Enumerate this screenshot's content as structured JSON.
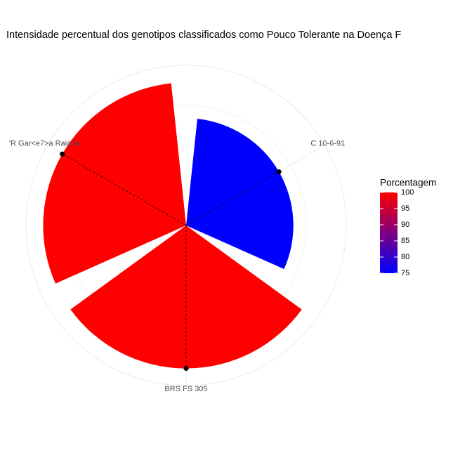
{
  "chart_data": {
    "type": "polar-bar",
    "title": "Intensidade percentual dos genotipos classificados como Pouco Tolerante na Doença F",
    "categories": [
      "C 10-6-91",
      "BRS FS 305",
      "'R Gar<e7>a Raiada"
    ],
    "values": [
      75,
      100,
      100
    ],
    "ylim": [
      0,
      112
    ],
    "legend": {
      "title": "Porcentagem",
      "low_color": "#0000ff",
      "high_color": "#ff0000",
      "limits": [
        75,
        100
      ],
      "ticks": [
        75,
        80,
        85,
        90,
        95,
        100
      ]
    }
  }
}
